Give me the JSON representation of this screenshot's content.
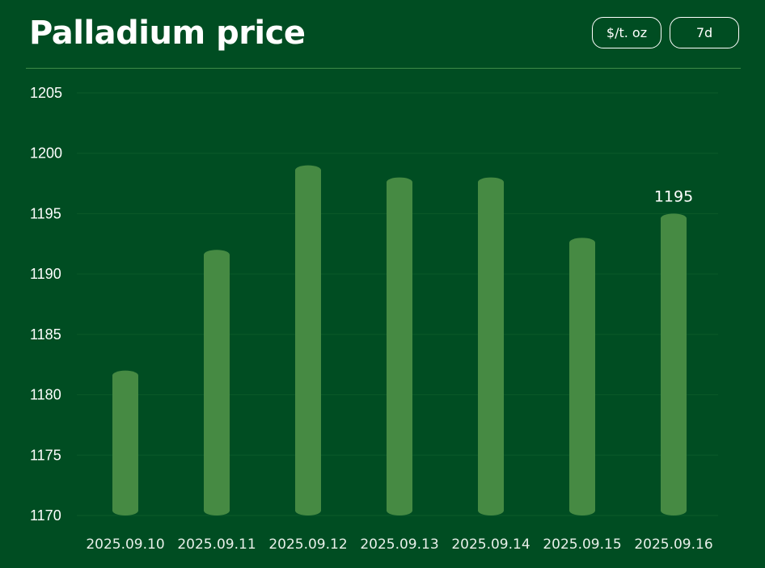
{
  "header": {
    "title": "Palladium price",
    "unit_label": "$/t. oz",
    "range_label": "7d"
  },
  "colors": {
    "background": "#004d22",
    "bar": "#468a43",
    "gridline": "#0b5a2a",
    "text": "#ffffff"
  },
  "chart_data": {
    "type": "bar",
    "title": "Palladium price",
    "xlabel": "",
    "ylabel": "",
    "categories": [
      "2025.09.10",
      "2025.09.11",
      "2025.09.12",
      "2025.09.13",
      "2025.09.14",
      "2025.09.15",
      "2025.09.16"
    ],
    "values": [
      1182,
      1192,
      1199,
      1198,
      1198,
      1193,
      1195
    ],
    "ylim": [
      1170,
      1205
    ],
    "yticks": [
      1170,
      1175,
      1180,
      1185,
      1190,
      1195,
      1200,
      1205
    ],
    "grid": true,
    "annotations": [
      {
        "category": "2025.09.16",
        "text": "1195"
      }
    ]
  }
}
